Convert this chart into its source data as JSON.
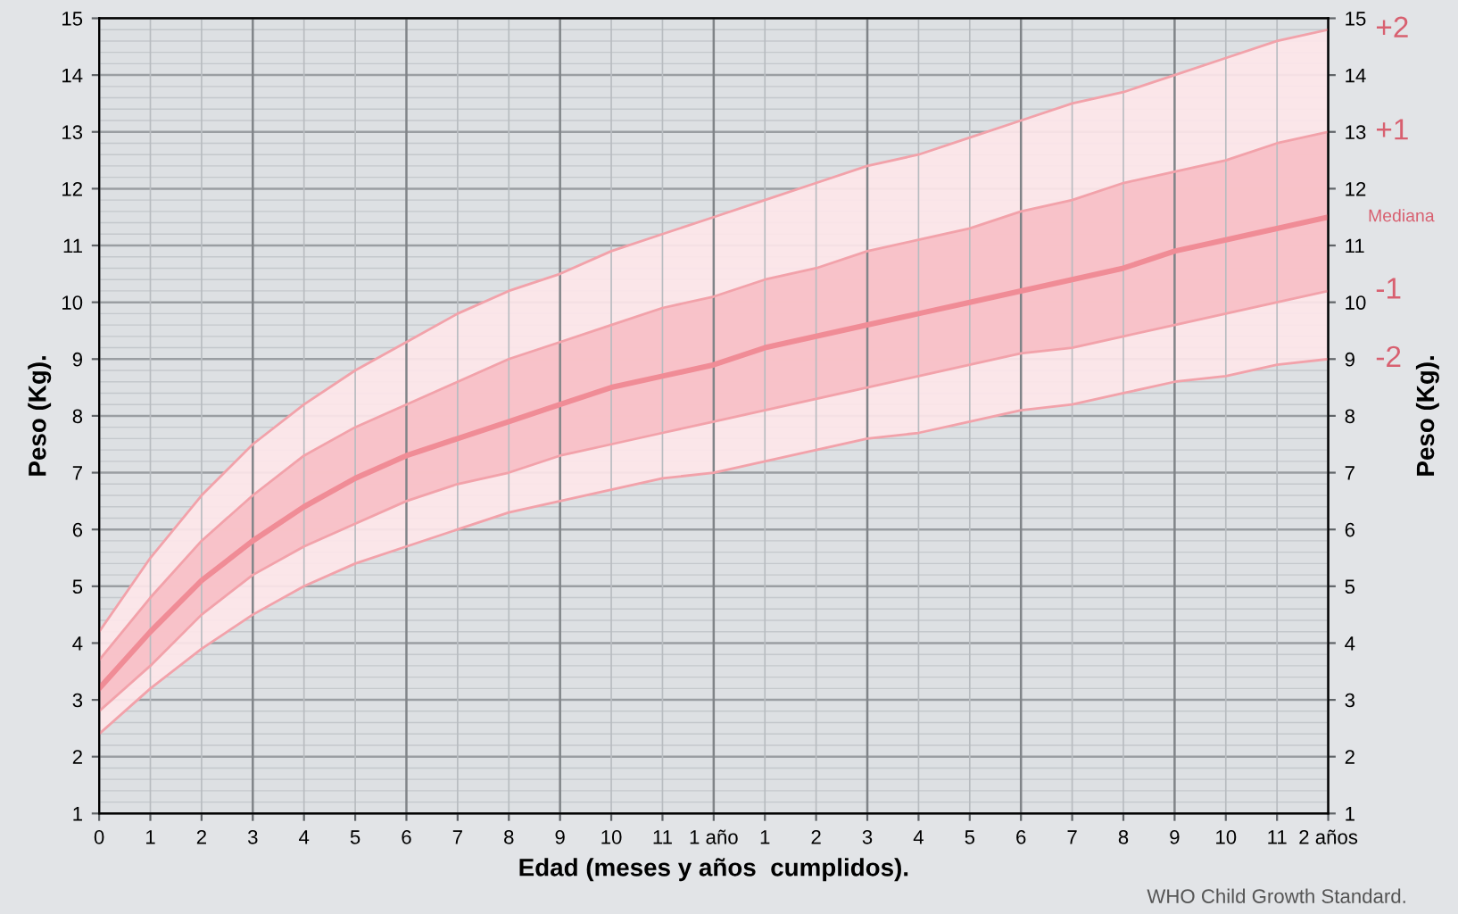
{
  "chart_data": {
    "type": "line",
    "xlabel": "Edad (meses y años  cumplidos).",
    "ylabel": "Peso (Kg).",
    "y2label": "Peso (Kg).",
    "annotations": [
      "WHO Child Growth Standard."
    ],
    "categories": [
      "0",
      "1",
      "2",
      "3",
      "4",
      "5",
      "6",
      "7",
      "8",
      "9",
      "10",
      "11",
      "1 año",
      "1",
      "2",
      "3",
      "4",
      "5",
      "6",
      "7",
      "8",
      "9",
      "10",
      "11",
      "2 años"
    ],
    "series": [
      {
        "name": "+2",
        "color": "#f2a2aa",
        "values": [
          4.2,
          5.5,
          6.6,
          7.5,
          8.2,
          8.8,
          9.3,
          9.8,
          10.2,
          10.5,
          10.9,
          11.2,
          11.5,
          11.8,
          12.1,
          12.4,
          12.6,
          12.9,
          13.2,
          13.5,
          13.7,
          14.0,
          14.3,
          14.6,
          14.8
        ],
        "lower": [
          2.4,
          3.2,
          3.9,
          4.5,
          5.0,
          5.4,
          5.7,
          6.0,
          6.3,
          6.5,
          6.7,
          6.9,
          7.0,
          7.2,
          7.4,
          7.6,
          7.7,
          7.9,
          8.1,
          8.2,
          8.4,
          8.6,
          8.7,
          8.9,
          9.0
        ],
        "upper": [
          4.2,
          5.5,
          6.6,
          7.5,
          8.2,
          8.8,
          9.3,
          9.8,
          10.2,
          10.5,
          10.9,
          11.2,
          11.5,
          11.8,
          12.1,
          12.4,
          12.6,
          12.9,
          13.2,
          13.5,
          13.7,
          14.0,
          14.3,
          14.6,
          14.8
        ]
      },
      {
        "name": "+1",
        "color": "#f2a2aa",
        "values": [
          3.7,
          4.8,
          5.8,
          6.6,
          7.3,
          7.8,
          8.2,
          8.6,
          9.0,
          9.3,
          9.6,
          9.9,
          10.1,
          10.4,
          10.6,
          10.9,
          11.1,
          11.3,
          11.6,
          11.8,
          12.1,
          12.3,
          12.5,
          12.8,
          13.0
        ]
      },
      {
        "name": "Mediana",
        "color": "#f08c96",
        "values": [
          3.2,
          4.2,
          5.1,
          5.8,
          6.4,
          6.9,
          7.3,
          7.6,
          7.9,
          8.2,
          8.5,
          8.7,
          8.9,
          9.2,
          9.4,
          9.6,
          9.8,
          10.0,
          10.2,
          10.4,
          10.6,
          10.9,
          11.1,
          11.3,
          11.5
        ],
        "lower": [
          2.8,
          3.6,
          4.5,
          5.2,
          5.7,
          6.1,
          6.5,
          6.8,
          7.0,
          7.3,
          7.5,
          7.7,
          7.9,
          8.1,
          8.3,
          8.5,
          8.7,
          8.9,
          9.1,
          9.2,
          9.4,
          9.6,
          9.8,
          10.0,
          10.2
        ],
        "upper": [
          3.7,
          4.8,
          5.8,
          6.6,
          7.3,
          7.8,
          8.2,
          8.6,
          9.0,
          9.3,
          9.6,
          9.9,
          10.1,
          10.4,
          10.6,
          10.9,
          11.1,
          11.3,
          11.6,
          11.8,
          12.1,
          12.3,
          12.5,
          12.8,
          13.0
        ]
      },
      {
        "name": "-1",
        "color": "#f2a2aa",
        "values": [
          2.8,
          3.6,
          4.5,
          5.2,
          5.7,
          6.1,
          6.5,
          6.8,
          7.0,
          7.3,
          7.5,
          7.7,
          7.9,
          8.1,
          8.3,
          8.5,
          8.7,
          8.9,
          9.1,
          9.2,
          9.4,
          9.6,
          9.8,
          10.0,
          10.2
        ]
      },
      {
        "name": "-2",
        "color": "#f2a2aa",
        "values": [
          2.4,
          3.2,
          3.9,
          4.5,
          5.0,
          5.4,
          5.7,
          6.0,
          6.3,
          6.5,
          6.7,
          6.9,
          7.0,
          7.2,
          7.4,
          7.6,
          7.7,
          7.9,
          8.1,
          8.2,
          8.4,
          8.6,
          8.7,
          8.9,
          9.0
        ]
      }
    ],
    "ylim": [
      1,
      15
    ],
    "yticks": [
      1,
      2,
      3,
      4,
      5,
      6,
      7,
      8,
      9,
      10,
      11,
      12,
      13,
      14,
      15
    ],
    "y2lim": [
      1,
      15
    ],
    "y2ticks": [
      1,
      2,
      3,
      4,
      5,
      6,
      7,
      8,
      9,
      10,
      11,
      12,
      13,
      14,
      15
    ],
    "grid": true,
    "legend": false,
    "marker": "none",
    "line_style": "solid"
  }
}
